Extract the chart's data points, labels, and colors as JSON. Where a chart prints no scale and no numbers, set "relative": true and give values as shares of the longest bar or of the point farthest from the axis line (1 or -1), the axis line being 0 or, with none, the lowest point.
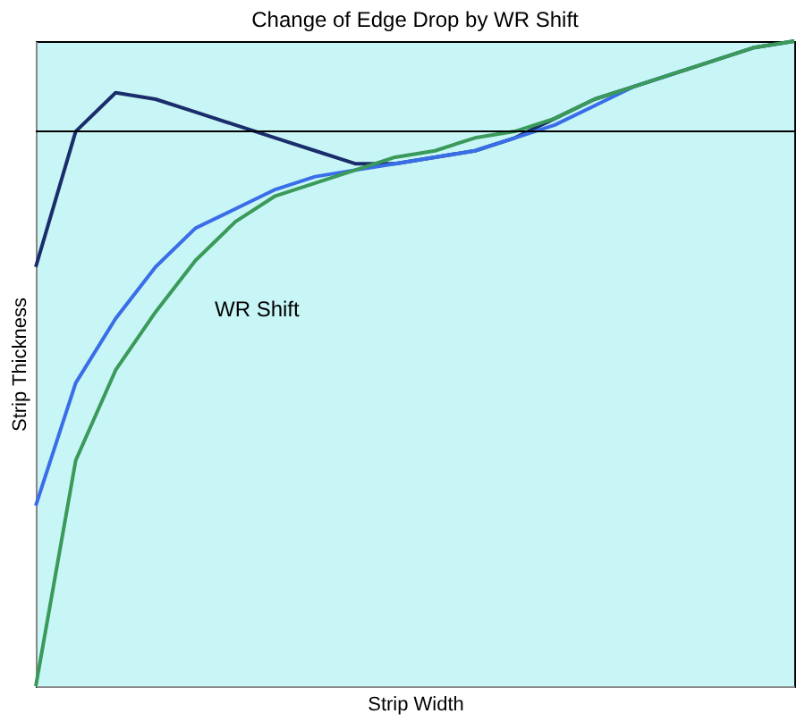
{
  "chart_data": {
    "type": "line",
    "title": "Change of Edge Drop by WR Shift",
    "xlabel": "Strip Width",
    "ylabel": "Strip Thickness",
    "relative": true,
    "tick_labels": false,
    "marker": "none",
    "line_style": "solid",
    "categories": [
      null,
      null,
      null,
      null,
      null,
      null,
      null,
      null,
      null,
      null,
      null,
      null,
      null,
      null,
      null,
      null,
      null,
      null,
      null,
      null
    ],
    "series": [
      {
        "color": "#1a2d6b",
        "values": [
          0.65,
          0.86,
          0.92,
          0.91,
          0.89,
          0.87,
          0.85,
          0.83,
          0.81,
          0.81,
          0.82,
          0.83,
          0.85,
          0.88,
          0.91,
          0.93,
          0.95,
          0.97,
          0.99,
          1
        ]
      },
      {
        "color": "#3a6ee8",
        "values": [
          0.28,
          0.47,
          0.57,
          0.65,
          0.71,
          0.74,
          0.77,
          0.79,
          0.8,
          0.81,
          0.82,
          0.83,
          0.85,
          0.87,
          0.9,
          0.93,
          0.95,
          null,
          null,
          null
        ]
      },
      {
        "color": "#3a9a5a",
        "values": [
          0,
          0.35,
          0.49,
          0.58,
          0.66,
          0.72,
          0.76,
          0.78,
          0.8,
          0.82,
          0.83,
          0.85,
          0.86,
          0.88,
          0.91,
          0.93,
          0.95,
          0.97,
          0.99,
          1
        ]
      }
    ],
    "ref_lines": [
      {
        "axis": "y",
        "value": 0.86,
        "color": "#000000"
      }
    ],
    "annotations": [
      "WR Shift"
    ]
  }
}
